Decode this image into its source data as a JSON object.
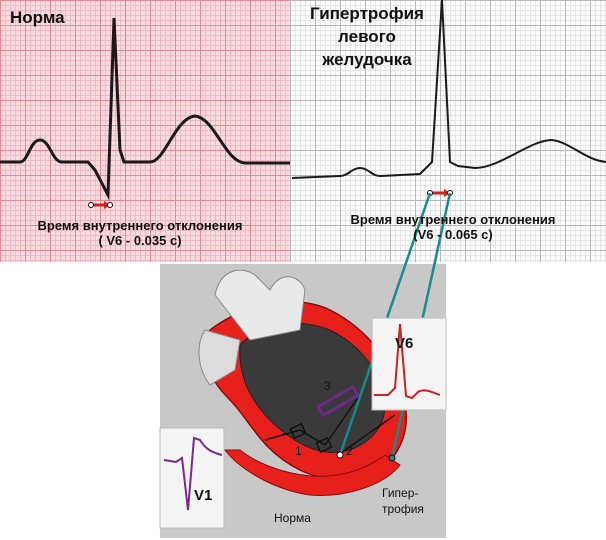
{
  "panels": {
    "norm": {
      "title": "Норма",
      "caption_line1": "Время внутреннего отклонения",
      "caption_line2": "( V6 - 0.035 с)"
    },
    "lvh": {
      "title": "Гипертрофия левого желудочка",
      "caption_line1": "Время внутреннего отклонения",
      "caption_line2": "(V6 - 0.065 с)"
    }
  },
  "heart": {
    "lead_v6": "V6",
    "lead_v1": "V1",
    "label_norm": "Норма",
    "label_hyper_line1": "Гипер-",
    "label_hyper_line2": "трофия",
    "marker_1": "1",
    "marker_2": "2",
    "marker_3": "3"
  },
  "colors": {
    "ecg_trace": "#1a1a1a",
    "norm_grid": "#e48a97",
    "myocardium": "#e8201c",
    "connector": "#1a8a8a",
    "v6_trace": "#cc2222",
    "v1_trace": "#7a2a8a",
    "arrow": "#cc2222"
  }
}
